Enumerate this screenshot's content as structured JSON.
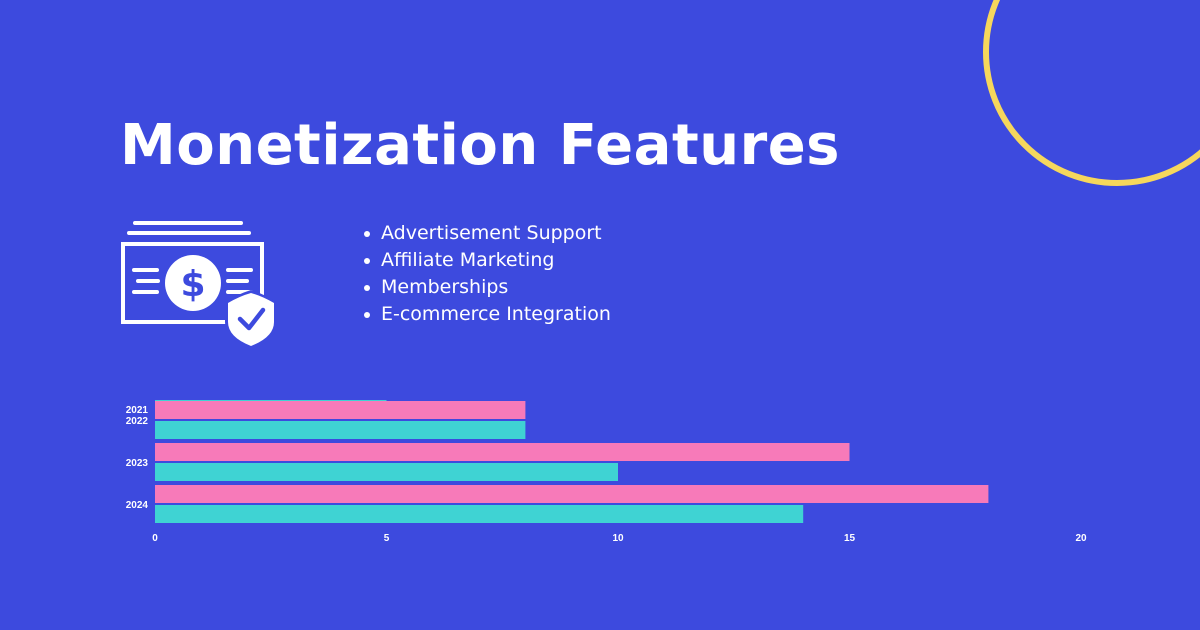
{
  "header": {
    "title": "Monetization Features"
  },
  "features": [
    "Advertisement Support",
    "Affiliate Marketing",
    "Memberships",
    "E-commerce Integration"
  ],
  "icons": {
    "money": "money-shield-check-icon"
  },
  "colors": {
    "background": "#3d4ade",
    "accent_ring": "#f6d75c",
    "series_pink": "#f77ab9",
    "series_teal": "#3fd3d3",
    "text": "#ffffff"
  },
  "chart_data": {
    "type": "bar",
    "orientation": "horizontal",
    "categories": [
      "2021",
      "2022",
      "2023",
      "2024"
    ],
    "series": [
      {
        "color": "#f77ab9",
        "values": [
          null,
          8,
          15,
          18
        ]
      },
      {
        "color": "#3fd3d3",
        "values": [
          5,
          8,
          10,
          14
        ]
      }
    ],
    "xlim": [
      0,
      20
    ],
    "xticks": [
      "0",
      "5",
      "10",
      "15",
      "20"
    ],
    "grid": false,
    "legend": "none"
  }
}
